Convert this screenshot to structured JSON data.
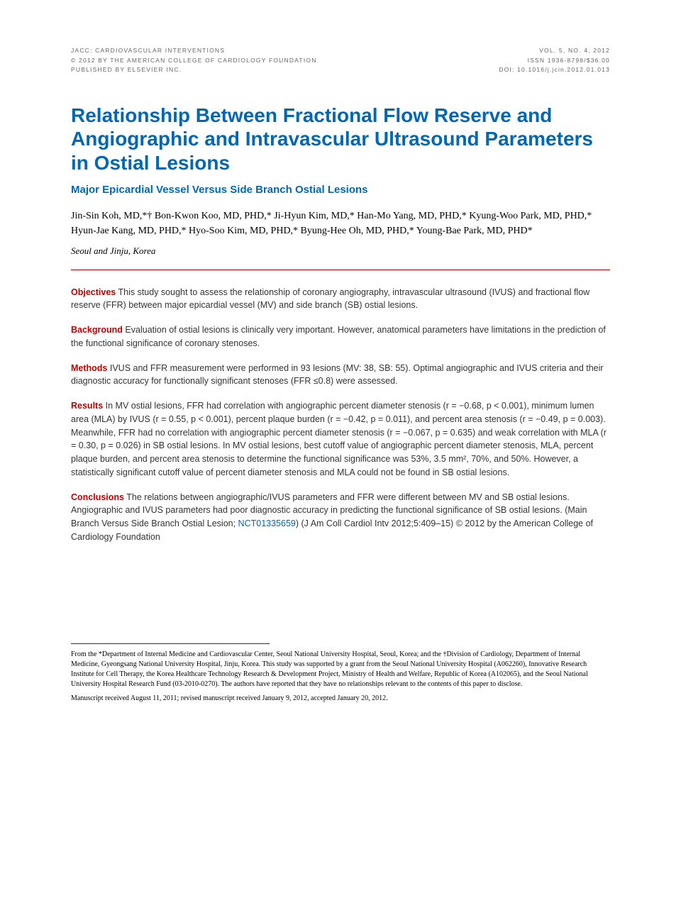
{
  "header": {
    "left": [
      "JACC: CARDIOVASCULAR INTERVENTIONS",
      "© 2012 BY THE AMERICAN COLLEGE OF CARDIOLOGY FOUNDATION",
      "PUBLISHED BY ELSEVIER INC."
    ],
    "right": [
      "VOL. 5, NO. 4, 2012",
      "ISSN 1936-8798/$36.00",
      "DOI: 10.1016/j.jcin.2012.01.013"
    ]
  },
  "title": "Relationship Between Fractional Flow Reserve and Angiographic and Intravascular Ultrasound Parameters in Ostial Lesions",
  "subtitle": "Major Epicardial Vessel Versus Side Branch Ostial Lesions",
  "authors": "Jin-Sin Koh, MD,*† Bon-Kwon Koo, MD, PHD,* Ji-Hyun Kim, MD,* Han-Mo Yang, MD, PHD,* Kyung-Woo Park, MD, PHD,* Hyun-Jae Kang, MD, PHD,* Hyo-Soo Kim, MD, PHD,* Byung-Hee Oh, MD, PHD,* Young-Bae Park, MD, PHD*",
  "location": "Seoul and Jinju, Korea",
  "abstract": {
    "objectives": {
      "label": "Objectives",
      "text": "This study sought to assess the relationship of coronary angiography, intravascular ultrasound (IVUS) and fractional flow reserve (FFR) between major epicardial vessel (MV) and side branch (SB) ostial lesions."
    },
    "background": {
      "label": "Background",
      "text": "Evaluation of ostial lesions is clinically very important. However, anatomical parameters have limitations in the prediction of the functional significance of coronary stenoses."
    },
    "methods": {
      "label": "Methods",
      "text": "IVUS and FFR measurement were performed in 93 lesions (MV: 38, SB: 55). Optimal angiographic and IVUS criteria and their diagnostic accuracy for functionally significant stenoses (FFR ≤0.8) were assessed."
    },
    "results": {
      "label": "Results",
      "text": "In MV ostial lesions, FFR had correlation with angiographic percent diameter stenosis (r = −0.68, p < 0.001), minimum lumen area (MLA) by IVUS (r = 0.55, p < 0.001), percent plaque burden (r = −0.42, p = 0.011), and percent area stenosis (r = −0.49, p = 0.003). Meanwhile, FFR had no correlation with angiographic percent diameter stenosis (r = −0.067, p = 0.635) and weak correlation with MLA (r = 0.30, p = 0.026) in SB ostial lesions. In MV ostial lesions, best cutoff value of angiographic percent diameter stenosis, MLA, percent plaque burden, and percent area stenosis to determine the functional significance was 53%, 3.5 mm², 70%, and 50%. However, a statistically significant cutoff value of percent diameter stenosis and MLA could not be found in SB ostial lesions."
    },
    "conclusions": {
      "label": "Conclusions",
      "text_before": "The relations between angiographic/IVUS parameters and FFR were different between MV and SB ostial lesions. Angiographic and IVUS parameters had poor diagnostic accuracy in predicting the functional significance of SB ostial lesions. (Main Branch Versus Side Branch Ostial Lesion; ",
      "trial_id": "NCT01335659",
      "text_after": ")  (J Am Coll Cardiol Intv 2012;5:409–15) © 2012 by the American College of Cardiology Foundation"
    }
  },
  "footnotes": {
    "affiliation": "From the *Department of Internal Medicine and Cardiovascular Center, Seoul National University Hospital, Seoul, Korea; and the †Division of Cardiology, Department of Internal Medicine, Gyeongsang National University Hospital, Jinju, Korea. This study was supported by a grant from the Seoul National University Hospital (A062260), Innovative Research Institute for Cell Therapy, the Korea Healthcare Technology Research & Development Project, Ministry of Health and Welfare, Republic of Korea (A102065), and the Seoul National University Hospital Research Fund (03-2010-0270). The authors have reported that they have no relationships relevant to the contents of this paper to disclose.",
    "manuscript": "Manuscript received August 11, 2011; revised manuscript received January 9, 2012, accepted January 20, 2012."
  },
  "colors": {
    "title_blue": "#0068b3",
    "label_red": "#c00000",
    "divider_red": "#c00000",
    "header_gray": "#666666",
    "body_text": "#333333",
    "background": "#ffffff"
  },
  "typography": {
    "title_fontsize": 28,
    "subtitle_fontsize": 15,
    "authors_fontsize": 14,
    "abstract_fontsize": 12.5,
    "header_fontsize": 8.5,
    "footnote_fontsize": 10
  }
}
